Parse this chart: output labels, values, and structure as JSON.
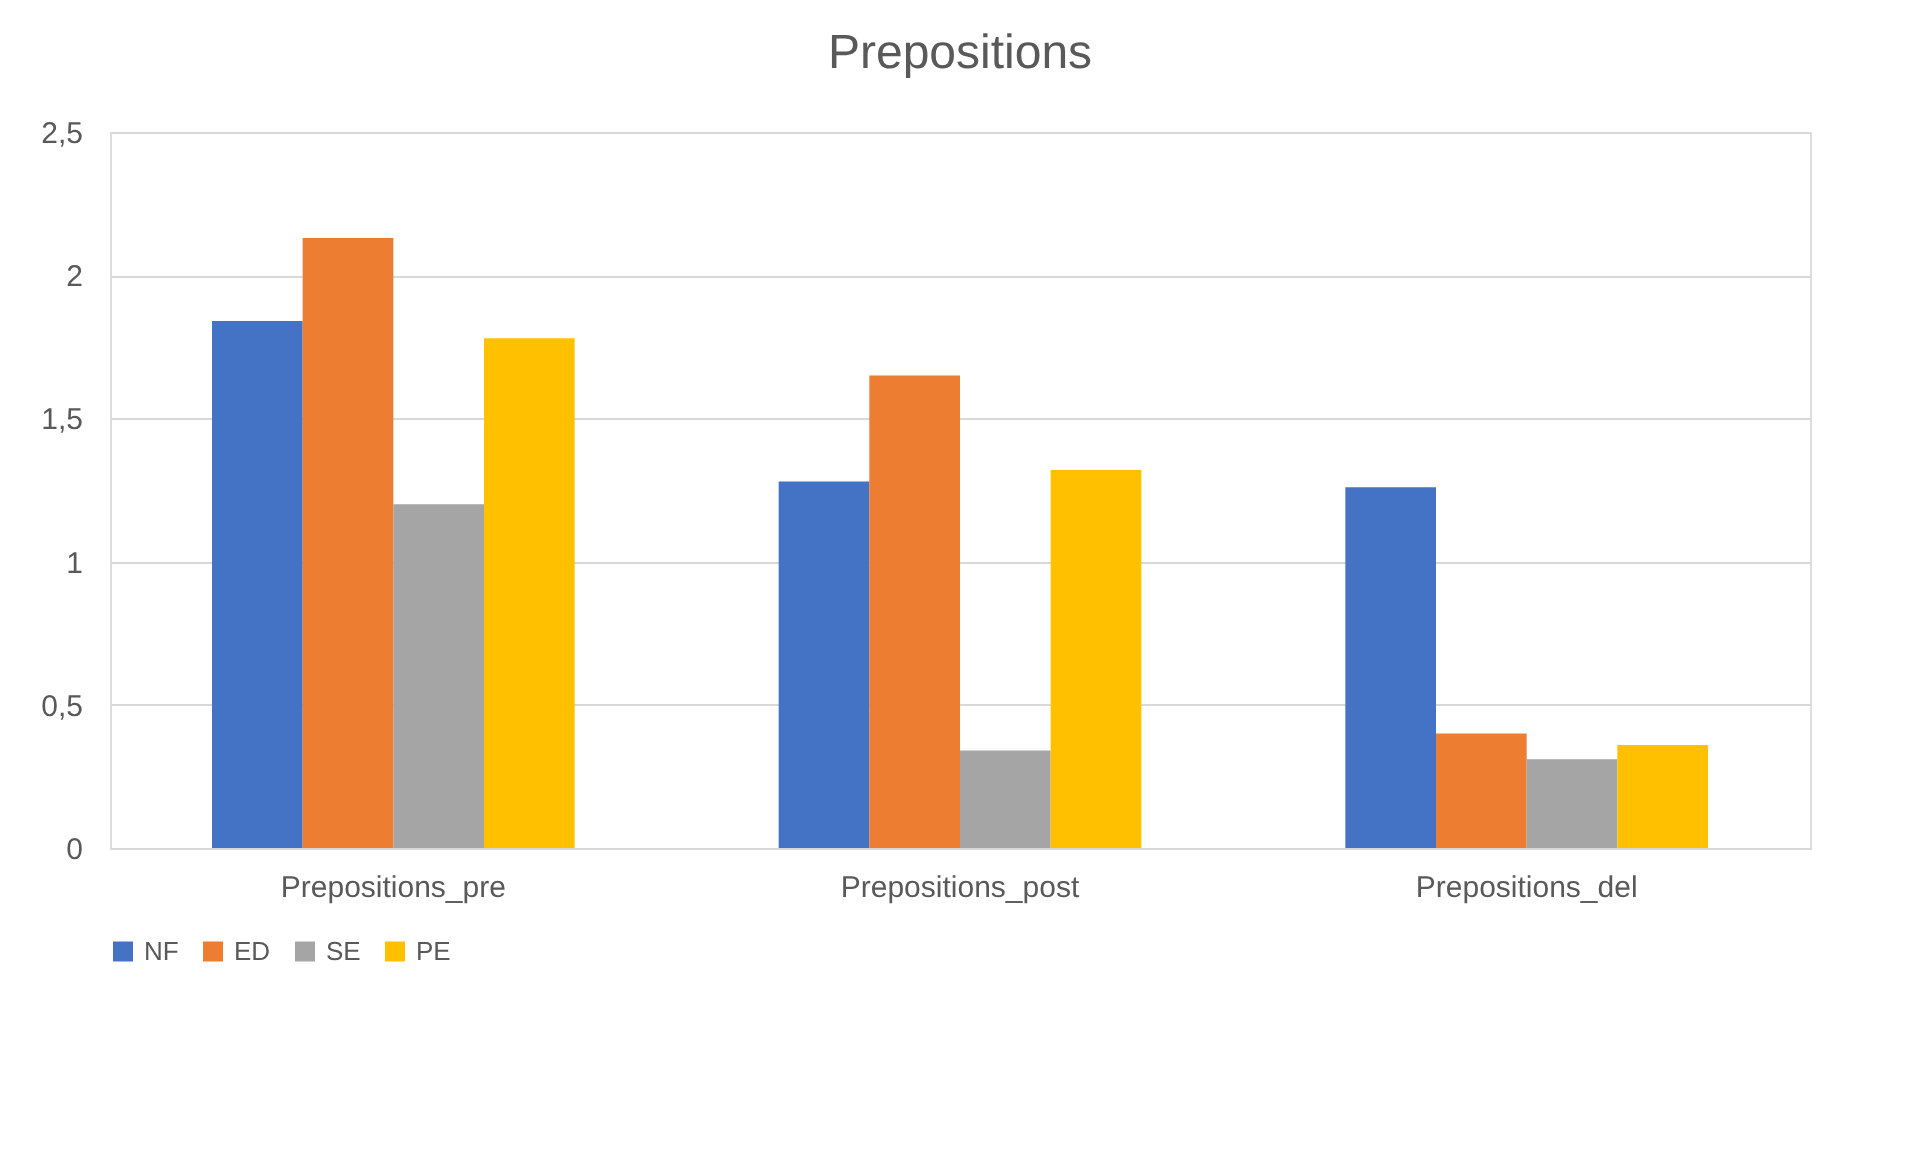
{
  "chart_data": {
    "type": "bar",
    "title": "Prepositions",
    "categories": [
      "Prepositions_pre",
      "Prepositions_post",
      "Prepositions_del"
    ],
    "series": [
      {
        "name": "NF",
        "color": "#4472c4",
        "values": [
          1.84,
          1.28,
          1.26
        ]
      },
      {
        "name": "ED",
        "color": "#ed7d31",
        "values": [
          2.13,
          1.65,
          0.4
        ]
      },
      {
        "name": "SE",
        "color": "#a5a5a5",
        "values": [
          1.2,
          0.34,
          0.31
        ]
      },
      {
        "name": "PE",
        "color": "#ffc000",
        "values": [
          1.78,
          1.32,
          0.36
        ]
      }
    ],
    "ylim": [
      0,
      2.5
    ],
    "yticks": [
      0,
      {
        "value": 0.5,
        "label": "0,5"
      },
      1,
      {
        "value": 1.5,
        "label": "1,5"
      },
      2,
      {
        "value": 2.5,
        "label": "2,5"
      }
    ],
    "grid": "y",
    "legend": "bottom"
  }
}
